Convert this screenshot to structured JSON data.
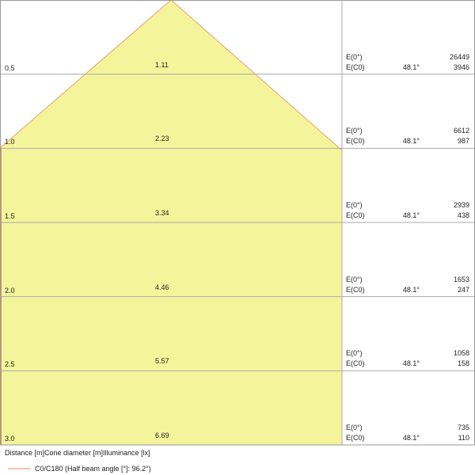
{
  "colors": {
    "cone_fill": "#f4f59b",
    "cone_edge": "#e8a070",
    "grid": "#aaaaaa"
  },
  "rows": [
    {
      "distance": "0.5",
      "diameter": "1.11",
      "e0_label": "E(0°)",
      "e0": "26449",
      "ec0_label": "E(C0)",
      "angle": "48.1°",
      "ec0": "3946"
    },
    {
      "distance": "1.0",
      "diameter": "2.23",
      "e0_label": "E(0°)",
      "e0": "6612",
      "ec0_label": "E(C0)",
      "angle": "48.1°",
      "ec0": "987"
    },
    {
      "distance": "1.5",
      "diameter": "3.34",
      "e0_label": "E(0°)",
      "e0": "2939",
      "ec0_label": "E(C0)",
      "angle": "48.1°",
      "ec0": "438"
    },
    {
      "distance": "2.0",
      "diameter": "4.46",
      "e0_label": "E(0°)",
      "e0": "1653",
      "ec0_label": "E(C0)",
      "angle": "48.1°",
      "ec0": "247"
    },
    {
      "distance": "2.5",
      "diameter": "5.57",
      "e0_label": "E(0°)",
      "e0": "1058",
      "ec0_label": "E(C0)",
      "angle": "48.1°",
      "ec0": "158"
    },
    {
      "distance": "3.0",
      "diameter": "6.69",
      "e0_label": "E(0°)",
      "e0": "735",
      "ec0_label": "E(C0)",
      "angle": "48.1°",
      "ec0": "110"
    }
  ],
  "footer": {
    "columns": "Distance [m]Cone diameter [m]Illuminance [lx]",
    "legend": "C0/C180 (Half beam angle [°]: 96.2°)"
  }
}
